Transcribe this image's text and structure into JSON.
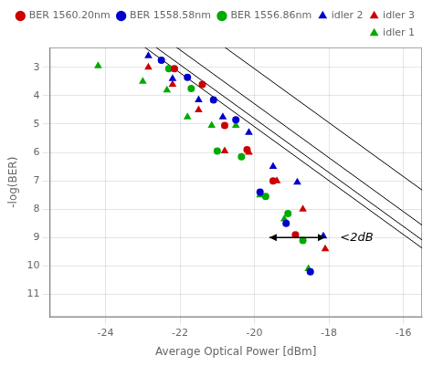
{
  "chart_data": {
    "type": "scatter",
    "xlabel": "Average Optical Power [dBm]",
    "ylabel": "-log(BER)",
    "xlim": [
      -25.5,
      -15.5
    ],
    "ylim": [
      11.8,
      2.3
    ],
    "xticks": [
      -24,
      -22,
      -20,
      -18,
      -16
    ],
    "yticks": [
      3,
      4,
      5,
      6,
      7,
      8,
      9,
      10,
      11
    ],
    "grid": true,
    "legend": "upper right",
    "series": [
      {
        "name": "BER 1560.20nm",
        "color": "#cc0000",
        "marker": "circle",
        "x": [
          -22.15,
          -21.4,
          -20.8,
          -20.2,
          -19.5,
          -18.9
        ],
        "values": [
          3.05,
          3.6,
          5.05,
          5.9,
          7.0,
          8.9
        ]
      },
      {
        "name": "BER 1558.58nm",
        "color": "#0000cc",
        "marker": "circle",
        "x": [
          -22.5,
          -21.8,
          -21.1,
          -20.5,
          -19.85,
          -19.15,
          -18.5
        ],
        "values": [
          2.75,
          3.35,
          4.15,
          4.85,
          7.4,
          8.5,
          10.2
        ]
      },
      {
        "name": "BER 1556.86nm",
        "color": "#00aa00",
        "marker": "circle",
        "x": [
          -22.3,
          -21.7,
          -21.0,
          -20.35,
          -19.7,
          -19.1,
          -18.7
        ],
        "values": [
          3.05,
          3.75,
          5.95,
          6.15,
          7.55,
          8.15,
          9.1
        ]
      },
      {
        "name": "idler 2",
        "color": "#0000cc",
        "marker": "triangle",
        "x": [
          -22.85,
          -22.2,
          -21.5,
          -20.85,
          -20.15,
          -19.5,
          -18.85,
          -18.15
        ],
        "values": [
          2.6,
          3.4,
          4.15,
          4.75,
          5.3,
          6.5,
          7.05,
          8.95
        ]
      },
      {
        "name": "idler 3",
        "color": "#cc0000",
        "marker": "triangle",
        "x": [
          -22.85,
          -22.2,
          -21.5,
          -20.8,
          -20.15,
          -19.4,
          -18.7,
          -18.1
        ],
        "values": [
          3.0,
          3.6,
          4.5,
          5.95,
          6.0,
          7.0,
          8.0,
          9.4
        ]
      },
      {
        "name": "idler 1",
        "color": "#00aa00",
        "marker": "triangle",
        "x": [
          -24.2,
          -23.0,
          -22.35,
          -21.8,
          -21.15,
          -20.5,
          -19.85,
          -19.2,
          -18.55
        ],
        "values": [
          2.95,
          3.5,
          3.8,
          4.75,
          5.05,
          5.05,
          7.5,
          8.35,
          10.1
        ]
      }
    ],
    "fit_lines": {
      "slope": 0.95,
      "color": "#000000",
      "x": [
        -22.15,
        -21.85,
        -21.3,
        -20.0
      ],
      "y": [
        3.05,
        3.05,
        3.05,
        3.05
      ]
    },
    "annotations": [
      {
        "text": "<2dB",
        "x": -17.7,
        "y": 9.0,
        "arrow_x1": -19.6,
        "arrow_x2": -18.1,
        "arrow_y": 9.0
      }
    ]
  }
}
